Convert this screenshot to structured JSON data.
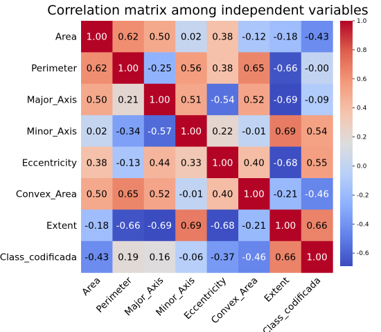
{
  "chart_data": {
    "type": "heatmap",
    "title": "Correlation matrix among independent variables",
    "variables": [
      "Area",
      "Perimeter",
      "Major_Axis",
      "Minor_Axis",
      "Eccentricity",
      "Convex_Area",
      "Extent",
      "Class_codificada"
    ],
    "matrix": [
      [
        "1.00",
        "0.62",
        "0.50",
        "0.02",
        "0.38",
        "-0.12",
        "-0.18",
        "-0.43"
      ],
      [
        "0.62",
        "1.00",
        "-0.25",
        "0.56",
        "0.38",
        "0.65",
        "-0.66",
        "-0.00"
      ],
      [
        "0.50",
        "0.21",
        "1.00",
        "0.51",
        "-0.54",
        "0.52",
        "-0.69",
        "-0.09"
      ],
      [
        "0.02",
        "-0.34",
        "-0.57",
        "1.00",
        "0.22",
        "-0.01",
        "0.69",
        "0.54"
      ],
      [
        "0.38",
        "-0.13",
        "0.44",
        "0.33",
        "1.00",
        "0.40",
        "-0.68",
        "0.55"
      ],
      [
        "0.50",
        "0.65",
        "0.52",
        "-0.01",
        "0.40",
        "1.00",
        "-0.21",
        "-0.46"
      ],
      [
        "-0.18",
        "-0.66",
        "-0.69",
        "0.69",
        "-0.68",
        "-0.21",
        "1.00",
        "0.66"
      ],
      [
        "-0.43",
        "0.19",
        "0.16",
        "-0.06",
        "-0.37",
        "-0.46",
        "0.66",
        "1.00"
      ]
    ],
    "colorbar": {
      "min": -0.69,
      "max": 1.0,
      "ticks": [
        "1.0",
        "0.8",
        "0.6",
        "0.4",
        "0.2",
        "0.0",
        "-0.2",
        "-0.4",
        "-0.6"
      ],
      "colormap": "coolwarm",
      "low_color": "#3b4cc0",
      "mid_color": "#dddddd",
      "high_color": "#b40426"
    }
  }
}
